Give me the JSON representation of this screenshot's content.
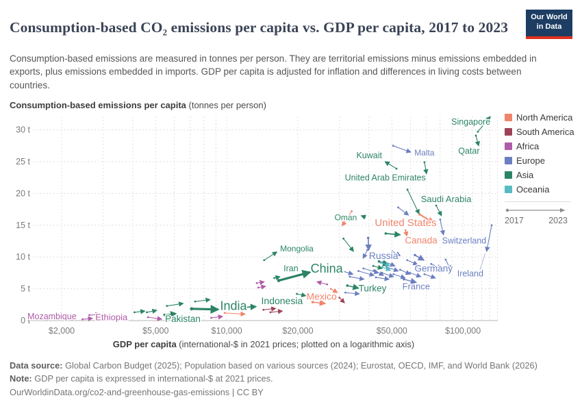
{
  "header": {
    "title": "Consumption-based CO₂ emissions per capita vs. GDP per capita, 2017 to 2023",
    "logo_line1": "Our World",
    "logo_line2": "in Data"
  },
  "subtitle": "Consumption-based emissions are measured in tonnes per person. They are territorial emissions minus emissions embedded in exports, plus emissions embedded in imports. GDP per capita is adjusted for inflation and differences in living costs between countries.",
  "axis_titles": {
    "y_bold": "Consumption-based emissions per capita",
    "y_normal": " (tonnes per person)",
    "x_bold": "GDP per capita",
    "x_normal": " (international-$ in 2021 prices; plotted on a logarithmic axis)"
  },
  "legend": {
    "items": [
      {
        "label": "North America",
        "color": "#F0846C"
      },
      {
        "label": "South America",
        "color": "#9E4357"
      },
      {
        "label": "Africa",
        "color": "#AF5CA8"
      },
      {
        "label": "Europe",
        "color": "#6B7EC0"
      },
      {
        "label": "Asia",
        "color": "#2C8465"
      },
      {
        "label": "Oceania",
        "color": "#56BCC2"
      }
    ],
    "timeline": {
      "start": "2017",
      "end": "2023"
    }
  },
  "footer": {
    "source_label": "Data source:",
    "source_text": " Global Carbon Budget (2025); Population based on various sources (2024); Eurostat, OECD, IMF, and World Bank (2026)",
    "note_label": "Note:",
    "note_text": " GDP per capita is expressed in international-$ at 2021 prices.",
    "link": "OurWorldinData.org/co2-and-greenhouse-gas-emissions | CC BY"
  },
  "chart_data": {
    "type": "scatter",
    "title": "Consumption-based CO₂ emissions per capita vs. GDP per capita, 2017 to 2023",
    "x_axis": {
      "label": "GDP per capita (international-$ in 2021 prices)",
      "scale": "log",
      "ticks": [
        2000,
        5000,
        10000,
        20000,
        50000,
        100000
      ],
      "tick_labels": [
        "$2,000",
        "$5,000",
        "$10,000",
        "$20,000",
        "$50,000",
        "$100,000"
      ],
      "range": [
        1500,
        140000
      ],
      "grid": true
    },
    "y_axis": {
      "label": "Consumption-based emissions per capita (tonnes per person)",
      "ticks": [
        0,
        5,
        10,
        15,
        20,
        25,
        30
      ],
      "tick_labels": [
        "0 t",
        "5 t",
        "10 t",
        "15 t",
        "20 t",
        "25 t",
        "30 t"
      ],
      "range": [
        0,
        33
      ],
      "grid": true
    },
    "years": [
      2017,
      2023
    ],
    "series": [
      {
        "name": "Singapore",
        "continent": "Asia",
        "gdp": [
          115600,
          130600
        ],
        "emissions": [
          29.7,
          32.1
        ],
        "label": {
          "gdp": 108000,
          "t": 31.3,
          "size": 12.5
        }
      },
      {
        "name": "Qatar",
        "continent": "Asia",
        "gdp": [
          113400,
          116500
        ],
        "emissions": [
          29.1,
          27.5
        ],
        "label": {
          "gdp": 106000,
          "t": 26.7,
          "size": 12.5
        }
      },
      {
        "name": "Kuwait",
        "continent": "Asia",
        "gdp": [
          52300,
          46800
        ],
        "emissions": [
          23.9,
          25.0
        ],
        "label": {
          "gdp": 40100,
          "t": 26.0,
          "size": 12.5
        }
      },
      {
        "name": "Malta",
        "continent": "Europe",
        "gdp": [
          50600,
          60100
        ],
        "emissions": [
          27.5,
          26.5
        ],
        "label": {
          "gdp": 68700,
          "t": 26.4,
          "size": 12
        }
      },
      {
        "name": "United Arab Emirates",
        "continent": "Asia",
        "gdp": [
          68700,
          70100
        ],
        "emissions": [
          24.9,
          23.1
        ],
        "label": {
          "gdp": 46900,
          "t": 22.5,
          "size": 12.5
        }
      },
      {
        "name": "Saudi Arabia",
        "continent": "Asia",
        "gdp": [
          58200,
          65200
        ],
        "emissions": [
          20.6,
          16.8
        ],
        "label": {
          "gdp": 84900,
          "t": 19.1,
          "size": 13
        }
      },
      {
        "name": "Oman",
        "continent": "Asia",
        "gdp": [
          38400,
          37100
        ],
        "emissions": [
          16.3,
          16.5
        ],
        "label": {
          "gdp": 31900,
          "t": 16.2,
          "size": 12
        }
      },
      {
        "name": "United States",
        "continent": "North America",
        "gdp": [
          65600,
          75000
        ],
        "emissions": [
          16.7,
          15.4
        ],
        "weight": 2,
        "label": {
          "gdp": 57200,
          "t": 15.4,
          "size": 15
        }
      },
      {
        "name": "Canada",
        "continent": "North America",
        "gdp": [
          57100,
          57900
        ],
        "emissions": [
          14.2,
          13.3
        ],
        "label": {
          "gdp": 66500,
          "t": 12.6,
          "size": 13.5
        }
      },
      {
        "name": "Switzerland",
        "continent": "Europe",
        "gdp": [
          80100,
          82700
        ],
        "emissions": [
          15.9,
          13.5
        ],
        "label": {
          "gdp": 101200,
          "t": 12.6,
          "size": 12.5
        }
      },
      {
        "name": "Ireland",
        "continent": "Europe",
        "gdp": [
          132300,
          125900
        ],
        "emissions": [
          15.0,
          10.9
        ],
        "leader": true,
        "label": {
          "gdp": 107400,
          "t": 7.4,
          "size": 12.5
        }
      },
      {
        "name": "Russia",
        "continent": "Europe",
        "gdp": [
          39700,
          39900
        ],
        "emissions": [
          13.0,
          11.1
        ],
        "weight": 1.6,
        "label": {
          "gdp": 46100,
          "t": 10.2,
          "size": 14
        }
      },
      {
        "name": "Mongolia",
        "continent": "Asia",
        "gdp": [
          14400,
          16300
        ],
        "emissions": [
          9.5,
          10.8
        ],
        "label": {
          "gdp": 19800,
          "t": 11.3,
          "size": 12
        }
      },
      {
        "name": "Germany",
        "continent": "Europe",
        "gdp": [
          62600,
          68300
        ],
        "emissions": [
          10.3,
          9.5
        ],
        "weight": 1.6,
        "label": {
          "gdp": 75100,
          "t": 8.2,
          "size": 13.5
        }
      },
      {
        "name": "France",
        "continent": "Europe",
        "gdp": [
          56200,
          63400
        ],
        "emissions": [
          6.5,
          6.0
        ],
        "weight": 1.5,
        "label": {
          "gdp": 63400,
          "t": 5.4,
          "size": 13
        }
      },
      {
        "name": "Turkey",
        "continent": "Asia",
        "gdp": [
          32400,
          36100
        ],
        "emissions": [
          5.5,
          5.1
        ],
        "weight": 1.5,
        "label": {
          "gdp": 41400,
          "t": 5.1,
          "size": 13.5
        }
      },
      {
        "name": "China",
        "continent": "Asia",
        "gdp": [
          16600,
          22500
        ],
        "emissions": [
          6.3,
          7.6
        ],
        "weight": 3.2,
        "label": {
          "gdp": 26500,
          "t": 8.2,
          "size": 18
        }
      },
      {
        "name": "Iran",
        "continent": "Asia",
        "gdp": [
          15900,
          16800
        ],
        "emissions": [
          6.7,
          6.9
        ],
        "label": {
          "gdp": 18700,
          "t": 8.2,
          "size": 12.5
        }
      },
      {
        "name": "India",
        "continent": "Asia",
        "gdp": [
          7100,
          9200
        ],
        "emissions": [
          1.85,
          1.75
        ],
        "weight": 3.2,
        "label": {
          "gdp": 10680,
          "t": 2.35,
          "size": 18
        }
      },
      {
        "name": "Indonesia",
        "continent": "Asia",
        "gdp": [
          11500,
          13300
        ],
        "emissions": [
          2.05,
          2.2
        ],
        "weight": 1.7,
        "label": {
          "gdp": 17140,
          "t": 3.1,
          "size": 14
        }
      },
      {
        "name": "Mexico",
        "continent": "North America",
        "gdp": [
          23100,
          26100
        ],
        "emissions": [
          2.9,
          2.7
        ],
        "weight": 1.5,
        "label": {
          "gdp": 25200,
          "t": 3.8,
          "size": 14
        }
      },
      {
        "name": "Pakistan",
        "continent": "Asia",
        "gdp": [
          5450,
          6100
        ],
        "emissions": [
          0.9,
          1.1
        ],
        "weight": 1.5,
        "label": {
          "gdp": 6520,
          "t": 0.3,
          "size": 13.5
        }
      },
      {
        "name": "Ethiopia",
        "continent": "Africa",
        "gdp": [
          2450,
          2700
        ],
        "emissions": [
          0.2,
          0.35
        ],
        "label": {
          "gdp": 3250,
          "t": 0.55,
          "size": 13
        }
      },
      {
        "name": "Mozambique",
        "continent": "Africa",
        "gdp": [
          1660,
          1790
        ],
        "emissions": [
          0.3,
          0.45
        ],
        "label": {
          "gdp": 1820,
          "t": 0.65,
          "size": 12.5
        }
      }
    ],
    "unlabeled": [
      {
        "continent": "Europe",
        "gdp": [
          30800,
          34200
        ],
        "emissions": [
          7.8,
          7.3
        ]
      },
      {
        "continent": "Europe",
        "gdp": [
          33200,
          38100
        ],
        "emissions": [
          6.9,
          6.5
        ]
      },
      {
        "continent": "Europe",
        "gdp": [
          36100,
          42000
        ],
        "emissions": [
          7.8,
          7.1
        ]
      },
      {
        "continent": "Europe",
        "gdp": [
          37900,
          43900
        ],
        "emissions": [
          8.2,
          7.5
        ]
      },
      {
        "continent": "Europe",
        "gdp": [
          42000,
          46100
        ],
        "emissions": [
          7.9,
          7.1
        ]
      },
      {
        "continent": "Europe",
        "gdp": [
          42800,
          48600
        ],
        "emissions": [
          6.8,
          6.5
        ]
      },
      {
        "continent": "Europe",
        "gdp": [
          45500,
          50800
        ],
        "emissions": [
          7.5,
          6.9
        ]
      },
      {
        "continent": "Europe",
        "gdp": [
          47600,
          53200
        ],
        "emissions": [
          8.4,
          7.8
        ]
      },
      {
        "continent": "Europe",
        "gdp": [
          50800,
          56900
        ],
        "emissions": [
          7.3,
          6.7
        ]
      },
      {
        "continent": "Europe",
        "gdp": [
          54200,
          59700
        ],
        "emissions": [
          8.0,
          7.3
        ]
      },
      {
        "continent": "Europe",
        "gdp": [
          59700,
          66300
        ],
        "emissions": [
          7.5,
          6.9
        ]
      },
      {
        "continent": "Europe",
        "gdp": [
          46100,
          51500
        ],
        "emissions": [
          9.3,
          8.6
        ]
      },
      {
        "continent": "Europe",
        "gdp": [
          58100,
          64200
        ],
        "emissions": [
          9.5,
          8.8
        ]
      },
      {
        "continent": "Europe",
        "gdp": [
          64200,
          70900
        ],
        "emissions": [
          8.4,
          7.8
        ]
      },
      {
        "continent": "Europe",
        "gdp": [
          68700,
          76400
        ],
        "emissions": [
          7.3,
          6.7
        ]
      },
      {
        "continent": "Europe",
        "gdp": [
          73400,
          81100
        ],
        "emissions": [
          8.9,
          8.2
        ]
      },
      {
        "continent": "Europe",
        "gdp": [
          84500,
          88500
        ],
        "emissions": [
          9.6,
          8.0
        ]
      },
      {
        "continent": "Europe",
        "gdp": [
          53200,
          58800
        ],
        "emissions": [
          17.8,
          16.6
        ]
      },
      {
        "continent": "Europe",
        "gdp": [
          39400,
          37800
        ],
        "emissions": [
          11.1,
          9.8
        ]
      },
      {
        "continent": "Europe",
        "gdp": [
          31800,
          36400
        ],
        "emissions": [
          4.4,
          4.2
        ]
      },
      {
        "continent": "Europe",
        "gdp": [
          50200,
          54200
        ],
        "emissions": [
          10.9,
          10.2
        ]
      },
      {
        "continent": "Asia",
        "gdp": [
          31200,
          34400
        ],
        "emissions": [
          12.9,
          10.9
        ]
      },
      {
        "continent": "Asia",
        "gdp": [
          47100,
          54200
        ],
        "emissions": [
          13.7,
          13.5
        ],
        "weight": 1.8
      },
      {
        "continent": "Asia",
        "gdp": [
          44100,
          48300
        ],
        "emissions": [
          9.3,
          8.7
        ],
        "weight": 2.2
      },
      {
        "continent": "Asia",
        "gdp": [
          41700,
          45500
        ],
        "emissions": [
          8.6,
          8.2
        ]
      },
      {
        "continent": "Asia",
        "gdp": [
          19800,
          21600
        ],
        "emissions": [
          4.2,
          3.9
        ]
      },
      {
        "continent": "Asia",
        "gdp": [
          4070,
          4500
        ],
        "emissions": [
          1.3,
          1.5
        ]
      },
      {
        "continent": "Asia",
        "gdp": [
          5580,
          6540
        ],
        "emissions": [
          2.3,
          2.7
        ]
      },
      {
        "continent": "Asia",
        "gdp": [
          7350,
          8500
        ],
        "emissions": [
          3.0,
          3.3
        ]
      },
      {
        "continent": "Asia",
        "gdp": [
          4590,
          5050
        ],
        "emissions": [
          1.3,
          1.6
        ]
      },
      {
        "continent": "Asia",
        "gdp": [
          77000,
          81100
        ],
        "emissions": [
          18.1,
          16.5
        ]
      },
      {
        "continent": "Oceania",
        "gdp": [
          45000,
          49000
        ],
        "emissions": [
          9.1,
          8.6
        ]
      },
      {
        "continent": "Oceania",
        "gdp": [
          45600,
          49300
        ],
        "emissions": [
          8.4,
          7.9
        ]
      },
      {
        "continent": "North America",
        "gdp": [
          33800,
          30800
        ],
        "emissions": [
          17.2,
          14.9
        ]
      },
      {
        "continent": "North America",
        "gdp": [
          27600,
          29400
        ],
        "emissions": [
          5.0,
          4.4
        ]
      },
      {
        "continent": "North America",
        "gdp": [
          9800,
          11950
        ],
        "emissions": [
          1.2,
          1.0
        ]
      },
      {
        "continent": "South America",
        "gdp": [
          30000,
          31500
        ],
        "emissions": [
          3.6,
          2.8
        ]
      },
      {
        "continent": "South America",
        "gdp": [
          14300,
          16100
        ],
        "emissions": [
          1.7,
          1.9
        ]
      },
      {
        "continent": "South America",
        "gdp": [
          15300,
          17200
        ],
        "emissions": [
          1.3,
          1.5
        ]
      },
      {
        "continent": "Africa",
        "gdp": [
          26600,
          24100
        ],
        "emissions": [
          5.7,
          6.1
        ]
      },
      {
        "continent": "Africa",
        "gdp": [
          13400,
          14400
        ],
        "emissions": [
          5.9,
          6.1
        ]
      },
      {
        "continent": "Africa",
        "gdp": [
          13600,
          14600
        ],
        "emissions": [
          5.2,
          5.4
        ]
      },
      {
        "continent": "Africa",
        "gdp": [
          4640,
          5300
        ],
        "emissions": [
          0.54,
          0.22
        ]
      },
      {
        "continent": "Africa",
        "gdp": [
          8600,
          9600
        ],
        "emissions": [
          0.43,
          0.65
        ]
      },
      {
        "continent": "Africa",
        "gdp": [
          2070,
          2290
        ],
        "emissions": [
          0.32,
          0.43
        ]
      },
      {
        "continent": "Africa",
        "gdp": [
          2620,
          2900
        ],
        "emissions": [
          0.86,
          0.97
        ]
      }
    ]
  }
}
